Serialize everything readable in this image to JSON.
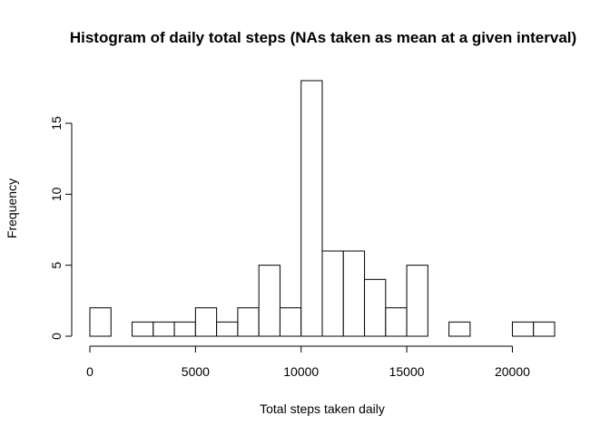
{
  "chart_data": {
    "type": "bar",
    "title": "Histogram of daily total steps (NAs taken as mean at a given interval)",
    "xlabel": "Total steps taken daily",
    "ylabel": "Frequency",
    "bin_width": 1000,
    "bins_start": [
      0,
      1000,
      2000,
      3000,
      4000,
      5000,
      6000,
      7000,
      8000,
      9000,
      10000,
      11000,
      12000,
      13000,
      14000,
      15000,
      16000,
      17000,
      18000,
      19000,
      20000,
      21000
    ],
    "values": [
      2,
      0,
      1,
      1,
      1,
      2,
      1,
      2,
      5,
      2,
      18,
      6,
      6,
      4,
      2,
      5,
      0,
      1,
      0,
      0,
      1,
      1
    ],
    "xlim": [
      0,
      22000
    ],
    "ylim": [
      0,
      18
    ],
    "x_ticks": [
      0,
      5000,
      10000,
      15000,
      20000
    ],
    "y_ticks": [
      0,
      5,
      10,
      15
    ],
    "grid": false,
    "bar_fill": "#ffffff",
    "bar_stroke": "#000000"
  }
}
